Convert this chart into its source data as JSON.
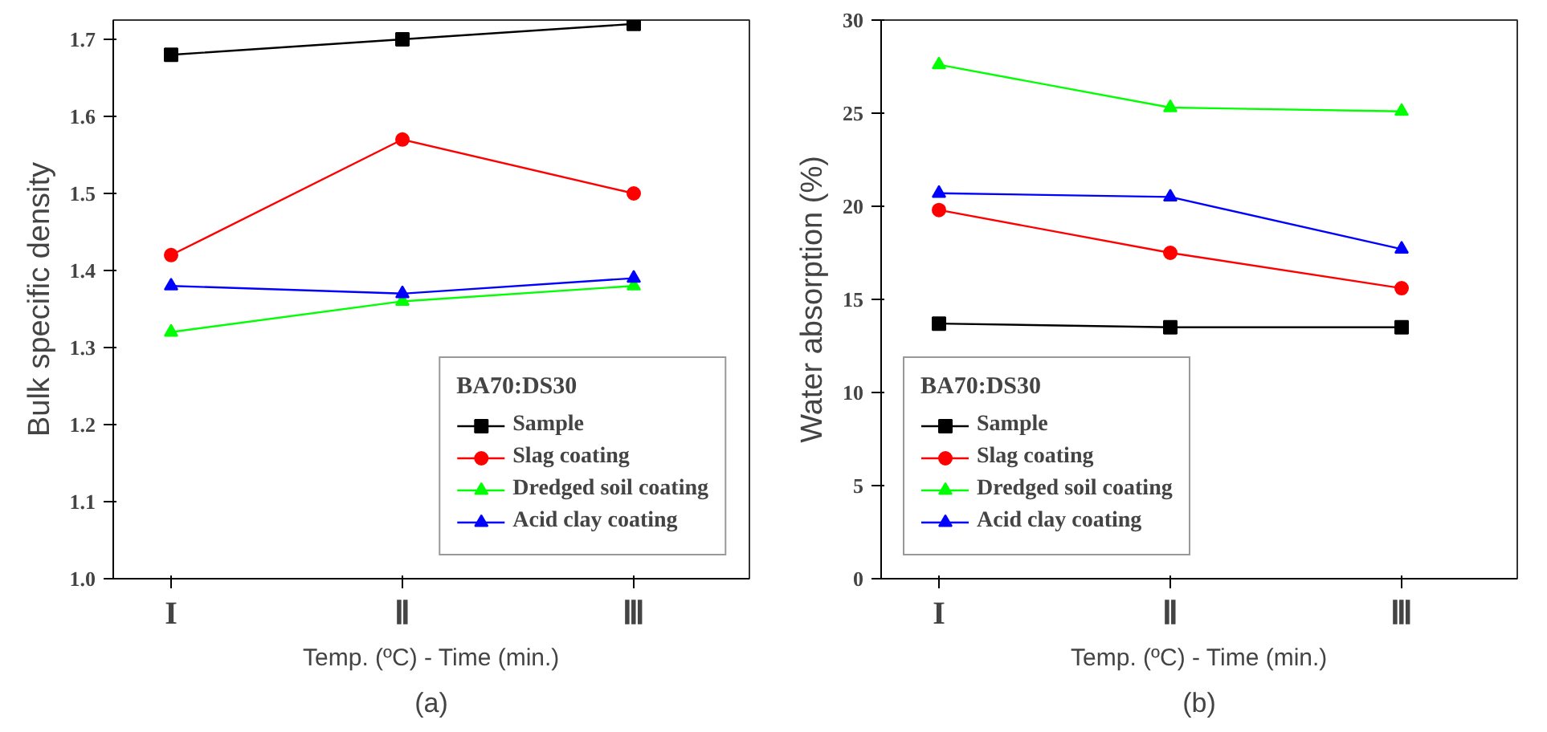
{
  "chart_data": [
    {
      "type": "line",
      "categories": [
        "I",
        "Ⅱ",
        "Ⅲ"
      ],
      "xlabel": "Temp. (ºC) - Time (min.)",
      "ylabel": "Bulk specific density",
      "ylim": [
        1.0,
        1.725
      ],
      "yticks": [
        {
          "value": 1.0,
          "label": "1.0"
        },
        1.1,
        1.2,
        1.3,
        1.4,
        1.5,
        1.6,
        1.7
      ],
      "legend": "bottom right",
      "legend_title": "BA70:DS30",
      "grid": false,
      "annotations": [
        "(a)"
      ],
      "series": [
        {
          "name": "Sample",
          "color": "#000000",
          "marker": "square",
          "values": [
            1.68,
            1.7,
            1.72
          ]
        },
        {
          "name": "Slag coating",
          "color": "#ff0000",
          "marker": "circle",
          "values": [
            1.42,
            1.57,
            1.5
          ]
        },
        {
          "name": "Dredged soil coating",
          "color": "#00ff00",
          "marker": "triangle",
          "values": [
            1.32,
            1.36,
            1.38
          ]
        },
        {
          "name": "Acid clay coating",
          "color": "#0000ff",
          "marker": "triangle",
          "values": [
            1.38,
            1.37,
            1.39
          ]
        }
      ]
    },
    {
      "type": "line",
      "categories": [
        "I",
        "Ⅱ",
        "Ⅲ"
      ],
      "xlabel": "Temp. (ºC) - Time (min.)",
      "ylabel": "Water absorption (%)",
      "ylim": [
        0,
        30
      ],
      "yticks": [
        0,
        5,
        10,
        15,
        20,
        25,
        30
      ],
      "legend": "bottom left",
      "legend_title": "BA70:DS30",
      "grid": false,
      "annotations": [
        "(b)"
      ],
      "series": [
        {
          "name": "Sample",
          "color": "#000000",
          "marker": "square",
          "values": [
            13.7,
            13.5,
            13.5
          ]
        },
        {
          "name": "Slag coating",
          "color": "#ff0000",
          "marker": "circle",
          "values": [
            19.8,
            17.5,
            15.6
          ]
        },
        {
          "name": "Dredged soil coating",
          "color": "#00ff00",
          "marker": "triangle",
          "values": [
            27.6,
            25.3,
            25.1
          ]
        },
        {
          "name": "Acid clay coating",
          "color": "#0000ff",
          "marker": "triangle",
          "values": [
            20.7,
            20.5,
            17.7
          ]
        }
      ]
    }
  ]
}
